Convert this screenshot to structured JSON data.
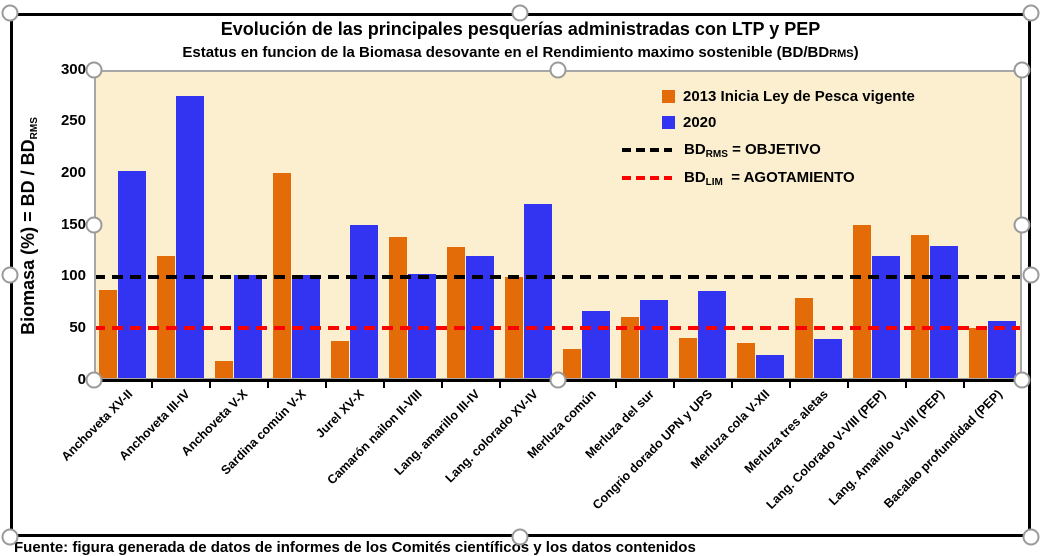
{
  "chart_data": {
    "type": "bar",
    "title": "Evolución de las principales pesquerías administradas con LTP y PEP",
    "subtitle_prefix": "Estatus en funcion de la Biomasa desovante en el Rendimiento maximo sostenible (BD/BD",
    "subtitle_sub": "RMS",
    "subtitle_suffix": ")",
    "ylabel_prefix": "Biomasa (%) = BD / BD",
    "ylabel_sub": "RMS",
    "ylim": [
      0,
      300
    ],
    "yticks": [
      0,
      50,
      100,
      150,
      200,
      250,
      300
    ],
    "grid": false,
    "legend_position": "inside-top-right",
    "plot_bg_color": "#FCEFD0",
    "categories": [
      "Anchoveta XV-II",
      "Anchoveta III-IV",
      "Anchoveta V-X",
      "Sardina común V-X",
      "Jurel XV-X",
      "Camarón nailon II-VIII",
      "Lang. amarillo III-IV",
      "Lang. colorado XV-IV",
      "Merluza común",
      "Merluza del sur",
      "Congrio dorado UPN y UPS",
      "Merluza cola V-XII",
      "Merluza tres aletas",
      "Lang. Colorado V-VIII (PEP)",
      "Lang. Amarillo V-VIII (PEP)",
      "Bacalao profundidad (PEP)"
    ],
    "series": [
      {
        "name": "2013 Inicia Ley de Pesca vigente",
        "color": "#E36C09",
        "values": [
          87,
          120,
          18,
          200,
          38,
          138,
          129,
          100,
          30,
          61,
          41,
          36,
          79,
          150,
          140,
          50
        ]
      },
      {
        "name": "2020",
        "color": "#3333F2",
        "values": [
          202,
          275,
          102,
          102,
          150,
          103,
          120,
          170,
          67,
          77,
          86,
          24,
          40,
          120,
          130,
          57
        ]
      }
    ],
    "reference_lines": [
      {
        "label_prefix": "BD",
        "label_sub": "RMS",
        "label_suffix": " = OBJETIVO",
        "value": 100,
        "color": "#000000",
        "style": "dashed"
      },
      {
        "label_prefix": "BD",
        "label_sub": "LIM",
        "label_suffix": "  = AGOTAMIENTO",
        "value": 50,
        "color": "#FF0000",
        "style": "dashed"
      }
    ]
  },
  "caption": "Fuente: figura generada de datos de informes de los Comités científicos y los datos contenidos",
  "selection": {
    "handle_color": "#9A9A9A"
  }
}
